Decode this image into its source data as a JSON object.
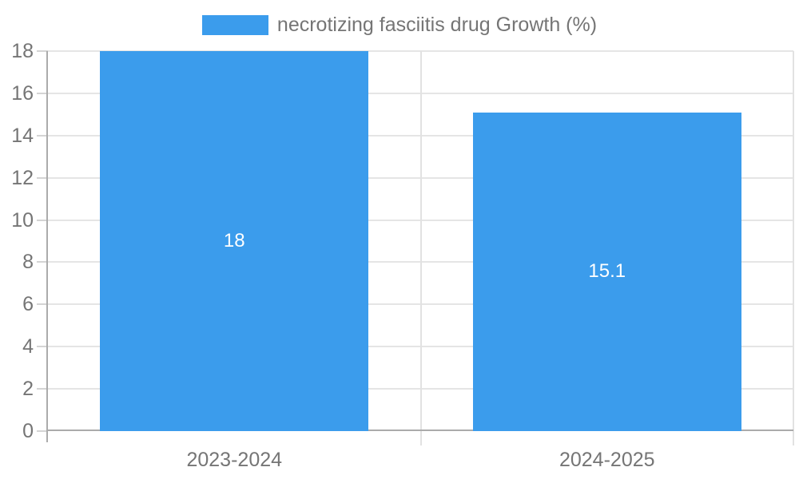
{
  "legend": {
    "position": "top",
    "items": [
      {
        "label": "necrotizing fasciitis drug Growth (%)",
        "swatch_color": "#3B9CEC"
      }
    ]
  },
  "chart_data": {
    "type": "bar",
    "title": "necrotizing fasciitis drug Growth (%)",
    "categories": [
      "2023-2024",
      "2024-2025"
    ],
    "series": [
      {
        "name": "necrotizing fasciitis drug Growth (%)",
        "values": [
          18,
          15.1
        ],
        "color": "#3B9CEC"
      }
    ],
    "value_labels": [
      "18",
      "15.1"
    ],
    "xlabel": "",
    "ylabel": "",
    "ylim": [
      0,
      18
    ],
    "yticks": [
      0,
      2,
      4,
      6,
      8,
      10,
      12,
      14,
      16,
      18
    ],
    "grid": true,
    "legend_position": "top",
    "bar_label_color": "#FFFFFF"
  },
  "colors": {
    "bar": "#3B9CEC",
    "grid": "#E5E5E5",
    "axis": "#ABABAB",
    "tick": "#D4D4D4",
    "text": "#757575",
    "bar_label": "#FFFFFF",
    "background": "#FFFFFF"
  }
}
